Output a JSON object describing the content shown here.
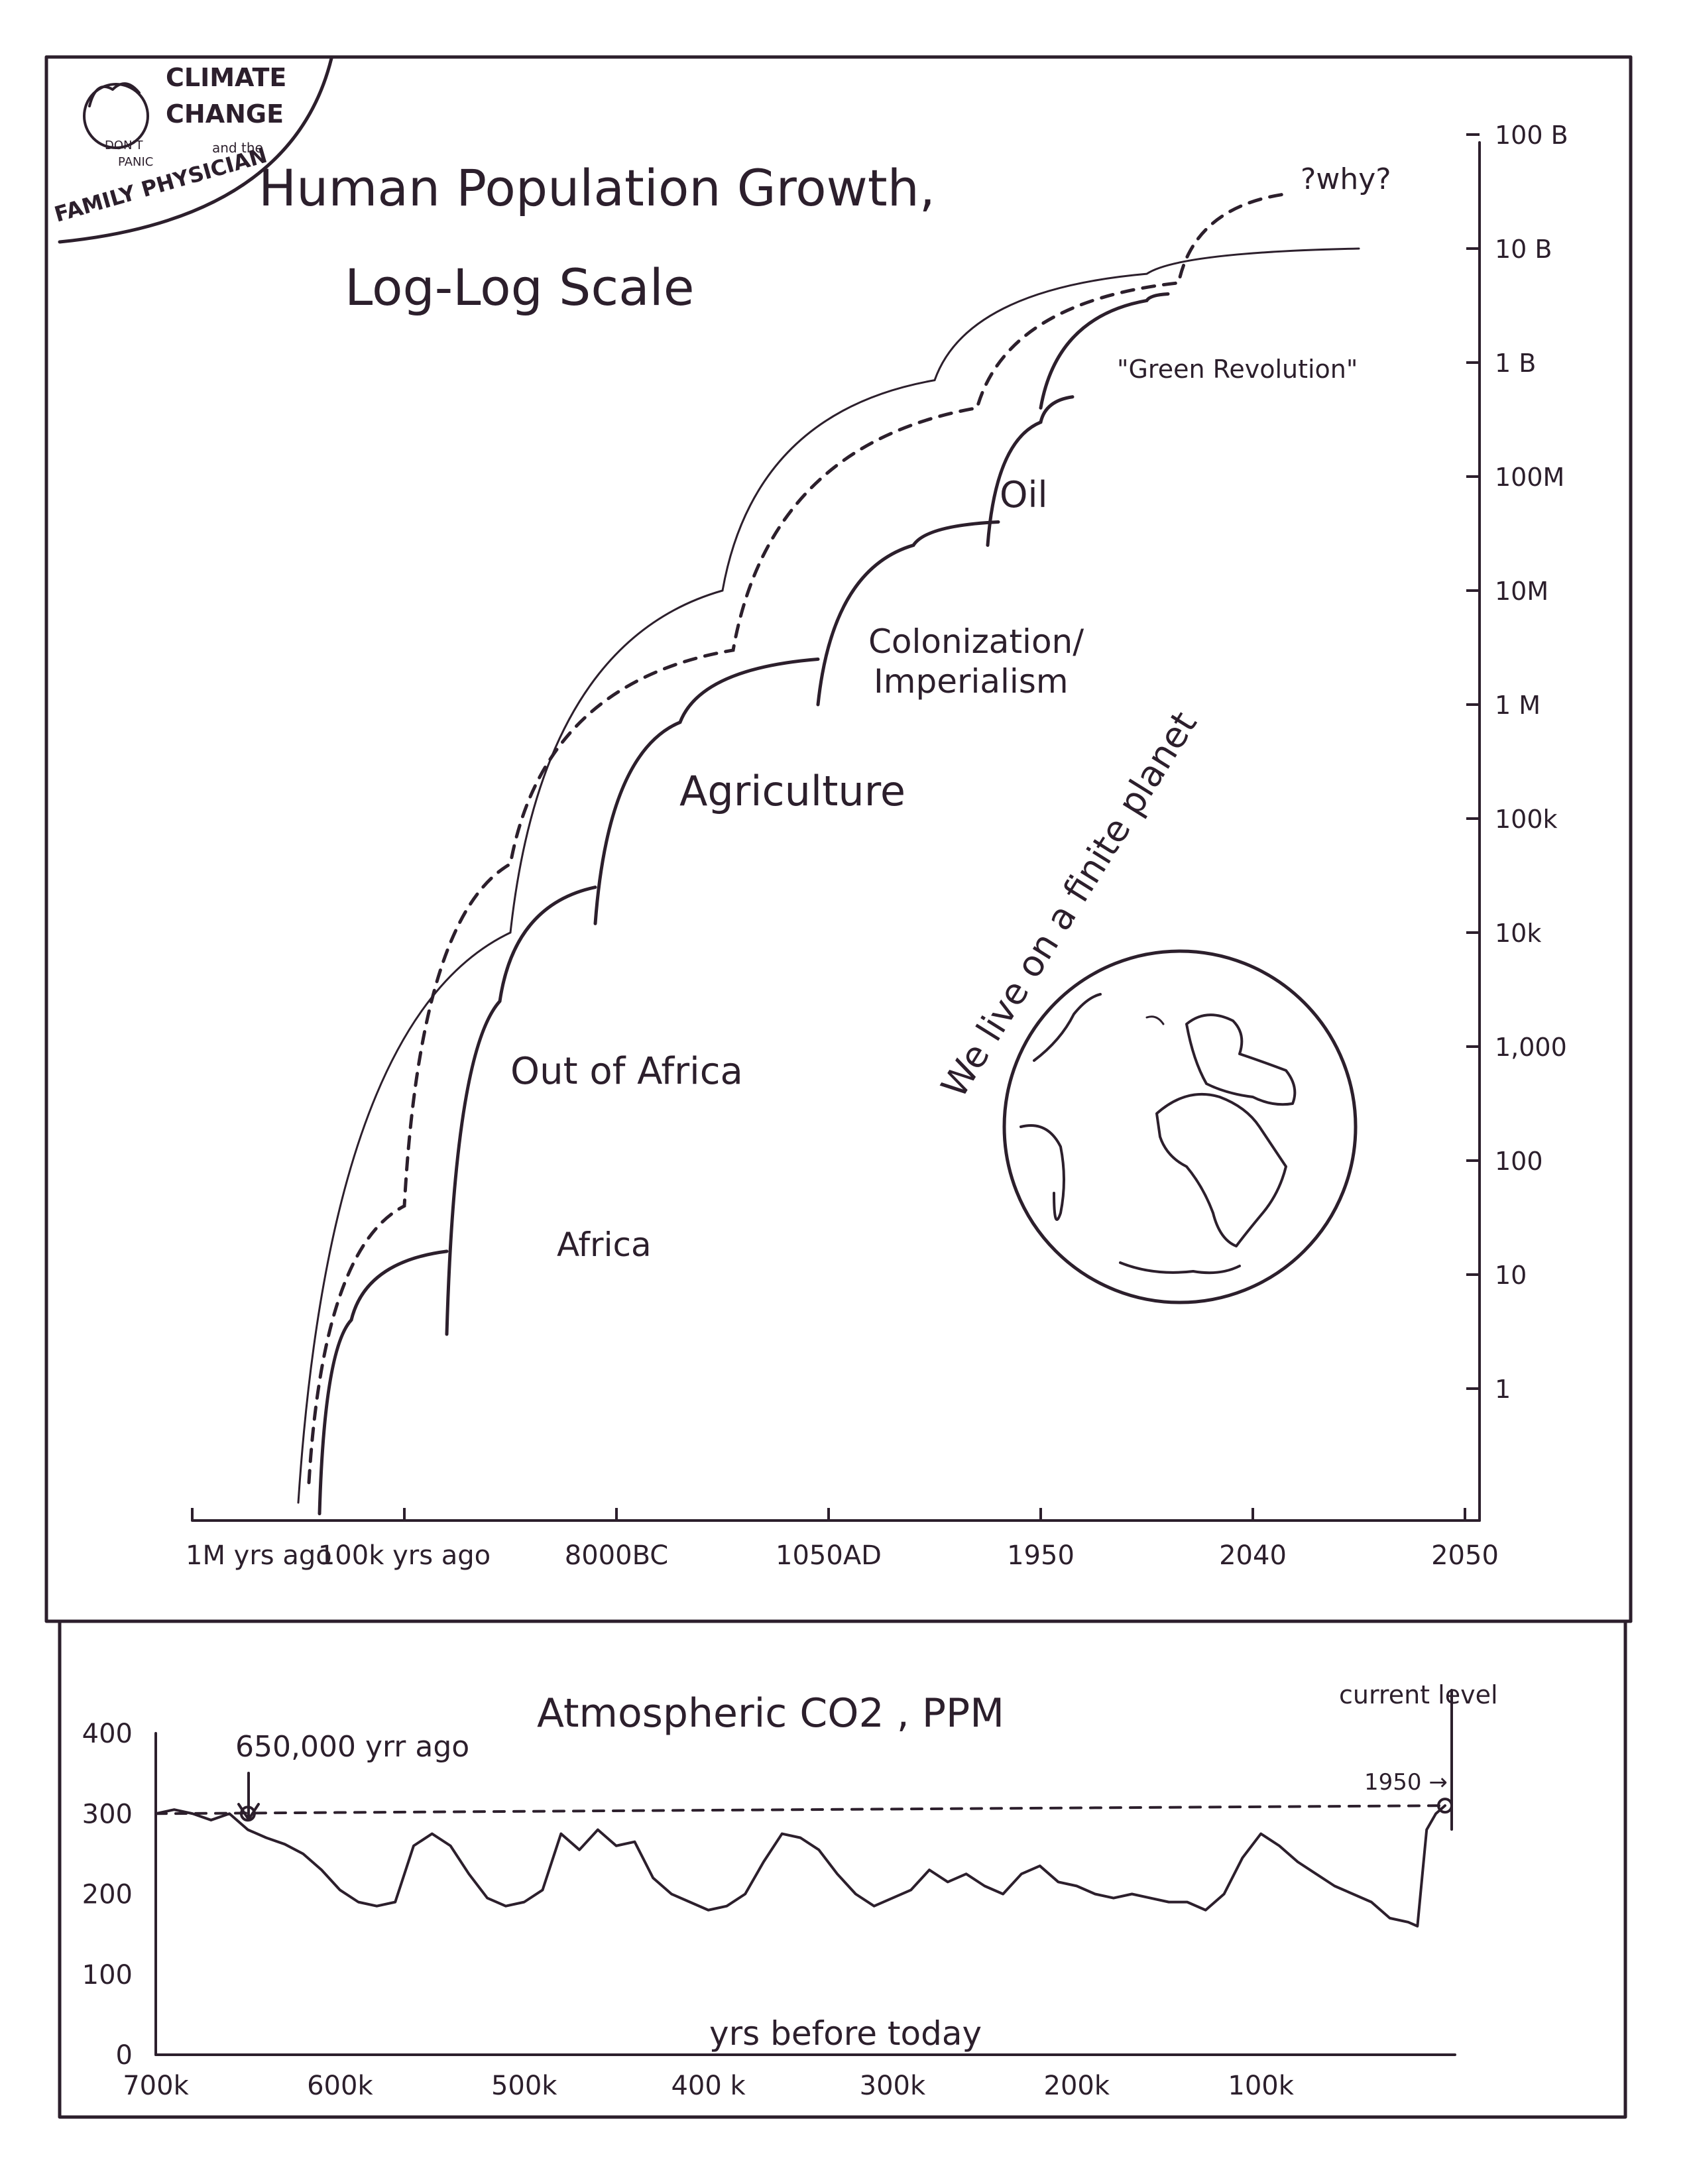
{
  "badge": {
    "line1": "CLIMATE",
    "line2": "CHANGE",
    "line3": "and the",
    "line4": "FAMILY PHYSICIAN",
    "bubble1": "DON'T",
    "bubble2": "PANIC"
  },
  "colors": {
    "ink": "#2c1f2c",
    "paper": "#ffffff"
  },
  "chart_data": [
    {
      "type": "line",
      "title": "Human Population Growth,",
      "subtitle": "Log-Log Scale",
      "xticks": [
        "1M yrs ago",
        "100k yrs ago",
        "8000BC",
        "1050AD",
        "1950",
        "2040",
        "2050"
      ],
      "yticks": [
        "100 B",
        "10 B",
        "1 B",
        "100M",
        "10M",
        "1 M",
        "100k",
        "10k",
        "1,000",
        "100",
        "10",
        "1"
      ],
      "y_scale": "log",
      "series": [
        {
          "name": "Africa",
          "style": "solid",
          "points": [
            [
              0.6,
              0.08
            ],
            [
              0.75,
              4
            ],
            [
              1.2,
              16
            ]
          ]
        },
        {
          "name": "Out of Africa",
          "style": "solid",
          "points": [
            [
              1.2,
              3
            ],
            [
              1.45,
              2500
            ],
            [
              1.9,
              25000
            ]
          ]
        },
        {
          "name": "Agriculture",
          "style": "solid",
          "points": [
            [
              1.9,
              12000
            ],
            [
              2.3,
              700000
            ],
            [
              2.95,
              2500000
            ]
          ]
        },
        {
          "name": "Colonization/ Imperialism",
          "style": "solid",
          "points": [
            [
              2.95,
              1000000
            ],
            [
              3.4,
              25000000
            ],
            [
              3.8,
              40000000
            ]
          ]
        },
        {
          "name": "Oil",
          "style": "solid",
          "points": [
            [
              3.75,
              25000000
            ],
            [
              4.0,
              300000000
            ],
            [
              4.15,
              500000000
            ]
          ]
        },
        {
          "name": "\"Green Revolution\"",
          "style": "solid",
          "points": [
            [
              4.0,
              400000000
            ],
            [
              4.5,
              3500000000
            ],
            [
              4.6,
              4000000000
            ]
          ]
        },
        {
          "name": "",
          "style": "dashed",
          "points": [
            [
              0.55,
              0.15
            ],
            [
              1.0,
              40
            ],
            [
              1.5,
              40000
            ],
            [
              2.55,
              3000000
            ],
            [
              3.7,
              400000000
            ],
            [
              4.65,
              5000000000
            ],
            [
              5.15,
              30000000000
            ]
          ]
        },
        {
          "name": "",
          "style": "thin",
          "points": [
            [
              0.5,
              0.1
            ],
            [
              1.5,
              10000
            ],
            [
              2.5,
              10000000
            ],
            [
              3.5,
              700000000
            ],
            [
              4.5,
              6000000000
            ],
            [
              5.5,
              10000000000
            ]
          ]
        }
      ],
      "annotations": [
        "Africa",
        "Out of Africa",
        "Agriculture",
        "Colonization/",
        "Imperialism",
        "Oil",
        "\"Green Revolution\"",
        "?why?",
        "We live on a finite planet"
      ]
    },
    {
      "type": "line",
      "title": "Atmospheric CO2 , PPM",
      "xlabel": "yrs before today",
      "ylabel": "",
      "xlim": [
        700,
        0
      ],
      "ylim": [
        0,
        400
      ],
      "xticks": [
        "700k",
        "600k",
        "500k",
        "400 k",
        "300k",
        "200k",
        "100k"
      ],
      "yticks": [
        "0",
        "100",
        "200",
        "300",
        "400"
      ],
      "annotations": [
        "650,000 yrr ago",
        "current level",
        "1950 →"
      ],
      "series": [
        {
          "name": "",
          "style": "solid",
          "x": [
            700,
            690,
            680,
            670,
            660,
            650,
            640,
            630,
            620,
            610,
            600,
            590,
            580,
            570,
            560,
            550,
            540,
            530,
            520,
            510,
            500,
            490,
            480,
            470,
            460,
            450,
            440,
            430,
            420,
            410,
            400,
            390,
            380,
            370,
            360,
            350,
            340,
            330,
            320,
            310,
            300,
            290,
            280,
            270,
            260,
            250,
            240,
            230,
            220,
            210,
            200,
            190,
            180,
            170,
            160,
            150,
            140,
            130,
            120,
            110,
            100,
            90,
            80,
            70,
            60,
            50,
            40,
            30,
            20,
            15,
            10,
            5,
            0
          ],
          "y": [
            300,
            305,
            300,
            292,
            300,
            280,
            270,
            262,
            250,
            230,
            205,
            190,
            185,
            190,
            260,
            275,
            260,
            225,
            195,
            185,
            190,
            205,
            275,
            255,
            280,
            260,
            265,
            220,
            200,
            190,
            180,
            185,
            200,
            240,
            275,
            270,
            255,
            225,
            200,
            185,
            195,
            205,
            230,
            215,
            225,
            210,
            200,
            225,
            235,
            215,
            210,
            200,
            195,
            200,
            195,
            190,
            190,
            180,
            200,
            245,
            275,
            260,
            240,
            225,
            210,
            200,
            190,
            170,
            165,
            160,
            280,
            300,
            310
          ]
        },
        {
          "name": "",
          "style": "dashed",
          "x": [
            700,
            0
          ],
          "y": [
            300,
            310
          ]
        }
      ]
    }
  ]
}
